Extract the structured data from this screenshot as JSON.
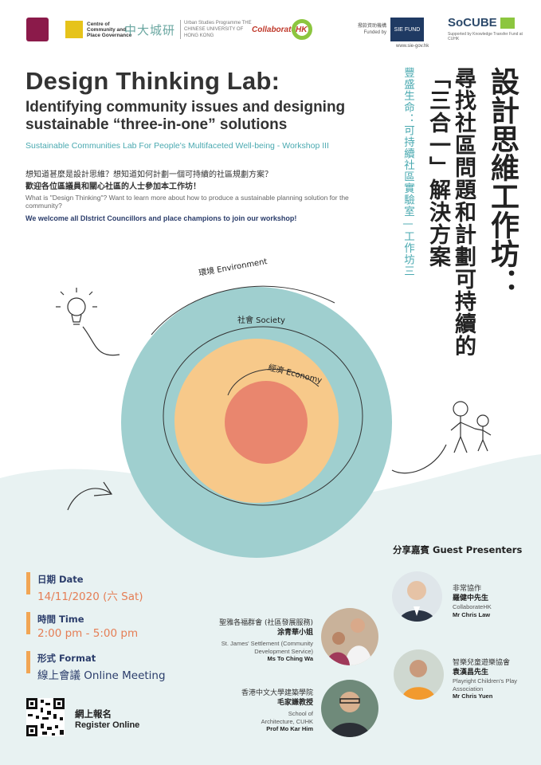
{
  "logos": {
    "ccpg": "Centre of Community and Place Governance",
    "usp_cn": "中大城研",
    "usp_en": "Urban Studies Programme THE CHINESE UNIVERSITY OF HONG KONG",
    "collab": "CollaborateHK",
    "sie_label": "撥款資助機構 Funded by",
    "sie_mark": "SIE FUND",
    "sie_url": "www.sie-gov.hk",
    "socube": "SoCUBE",
    "socube_sub": "Supported by Knowledge Transfer Fund at CUHK"
  },
  "header": {
    "title_en": "Design Thinking Lab:",
    "subtitle_en": "Identifying community issues and designing sustainable “three-in-one” solutions",
    "workshop_en": "Sustainable Communities Lab For People's Multifaceted Well-being - Workshop III",
    "question_cn": "想知道甚麼是設計思維？想知道如何計劃一個可持續的社區規劃方案？",
    "welcome_cn": "歡迎各位區議員和關心社區的人士參加本工作坊！",
    "question_en": "What is \"Design Thinking\"? Want to learn more about how to produce a sustainable  planning solution for the community?",
    "welcome_en": "We welcome all DIstrict Councillors and place champions to join our workshop!"
  },
  "vertical": {
    "title_cn_1": "設計思維工作坊：",
    "title_cn_2": "尋找社區問題和計劃可持續的",
    "title_cn_3": "「三合一」解決方案",
    "subtitle_cn": "豐盛生命：可持續社區實驗室—工作坊三"
  },
  "diagram": {
    "outer_label": "環境 Environment",
    "middle_label": "社會 Society",
    "inner_label": "經濟 Economy",
    "colors": {
      "outer": "#9fcfcf",
      "middle": "#f7c98a",
      "inner": "#e9866e"
    }
  },
  "event": {
    "date_label": "日期 Date",
    "date_value": "14/11/2020 (六 Sat)",
    "time_label": "時間 Time",
    "time_value": "2:00 pm - 5:00 pm",
    "format_label": "形式 Format",
    "format_value": "線上會議  Online Meeting",
    "register_cn": "網上報名",
    "register_en": "Register Online"
  },
  "presenters": {
    "title": "分享嘉賓  Guest Presenters",
    "list": [
      {
        "org_cn": "非常協作",
        "name_cn": "羅健中先生",
        "org_en": "CollaborateHK",
        "name_en": "Mr Chris Law"
      },
      {
        "org_cn": "聖雅各福群會 (社區發展服務)",
        "name_cn": "涂青華小姐",
        "org_en": "St. James' Settlement (Community Development Service)",
        "name_en": "Ms To Ching Wa"
      },
      {
        "org_cn": "智樂兒童遊樂協會",
        "name_cn": "袁漢昌先生",
        "org_en": "Playright Children's Play Association",
        "name_en": "Mr Chris Yuen"
      },
      {
        "org_cn": "香港中文大學建築學院",
        "name_cn": "毛家謙教授",
        "org_en": "School of Architecture, CUHK",
        "name_en": "Prof Mo Kar Him"
      }
    ]
  }
}
